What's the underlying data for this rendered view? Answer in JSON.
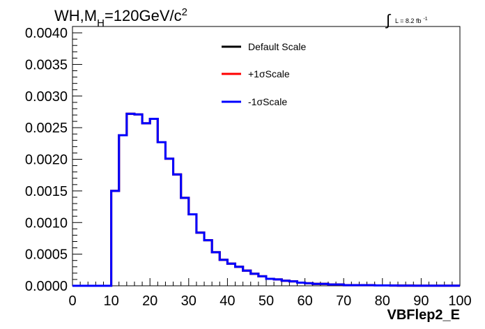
{
  "title": {
    "main": "WH,M",
    "sub": "H",
    "rest": "=120GeV/c",
    "sup": "2"
  },
  "luminosity": {
    "integral_sign": "∫",
    "text": "L = 8.2 fb",
    "sup": "-1"
  },
  "chart_data": {
    "type": "line",
    "style": "histogram-step",
    "xlabel": "VBFlep2_E",
    "ylabel": "",
    "xlim": [
      0,
      100
    ],
    "ylim": [
      0,
      0.0041
    ],
    "x_ticks": [
      "0",
      "10",
      "20",
      "30",
      "40",
      "50",
      "60",
      "70",
      "80",
      "90",
      "100"
    ],
    "y_ticks": [
      "0.0000",
      "0.0005",
      "0.0010",
      "0.0015",
      "0.0020",
      "0.0025",
      "0.0030",
      "0.0035",
      "0.0040"
    ],
    "bin_width": 2,
    "bin_edges_start": 0,
    "series": [
      {
        "name": "Default Scale",
        "color": "#000000",
        "values": [
          0,
          0,
          0,
          0,
          0,
          0.0015,
          0.00238,
          0.00272,
          0.00271,
          0.00257,
          0.00264,
          0.00227,
          0.00201,
          0.00176,
          0.00139,
          0.00113,
          0.00084,
          0.00072,
          0.00053,
          0.00041,
          0.00035,
          0.0003,
          0.00024,
          0.00019,
          0.00015,
          0.00011,
          0.0001,
          8e-05,
          7e-05,
          5e-05,
          4e-05,
          3e-05,
          3e-05,
          2e-05,
          2e-05,
          1e-05,
          1e-05,
          1e-05,
          1e-05,
          5e-06,
          5e-06,
          4e-06,
          3e-06,
          3e-06,
          2e-06,
          2e-06,
          1e-06,
          1e-06,
          1e-06,
          1e-06
        ]
      },
      {
        "name": "+1σScale",
        "color": "#ff0000",
        "values": [
          0,
          0,
          0,
          0,
          0,
          0.0015,
          0.00238,
          0.00272,
          0.00271,
          0.00257,
          0.00264,
          0.00227,
          0.00201,
          0.00176,
          0.00139,
          0.00113,
          0.00084,
          0.00072,
          0.00053,
          0.00041,
          0.00035,
          0.0003,
          0.00024,
          0.00019,
          0.00015,
          0.00011,
          0.0001,
          8e-05,
          7e-05,
          5e-05,
          4e-05,
          3e-05,
          3e-05,
          2e-05,
          2e-05,
          1e-05,
          1e-05,
          1e-05,
          1e-05,
          5e-06,
          5e-06,
          4e-06,
          3e-06,
          3e-06,
          2e-06,
          2e-06,
          1e-06,
          1e-06,
          1e-06,
          1e-06
        ]
      },
      {
        "name": "-1σScale",
        "color": "#0000ff",
        "values": [
          0,
          0,
          0,
          0,
          0,
          0.0015,
          0.00238,
          0.00272,
          0.00271,
          0.00257,
          0.00264,
          0.00227,
          0.00201,
          0.00176,
          0.00139,
          0.00113,
          0.00084,
          0.00072,
          0.00053,
          0.00041,
          0.00035,
          0.0003,
          0.00024,
          0.00019,
          0.00015,
          0.00011,
          0.0001,
          8e-05,
          7e-05,
          5e-05,
          4e-05,
          3e-05,
          3e-05,
          2e-05,
          2e-05,
          1e-05,
          1e-05,
          1e-05,
          1e-05,
          5e-06,
          5e-06,
          4e-06,
          3e-06,
          3e-06,
          2e-06,
          2e-06,
          1e-06,
          1e-06,
          1e-06,
          1e-06
        ]
      }
    ],
    "legend_position": "top-center",
    "grid": false
  }
}
